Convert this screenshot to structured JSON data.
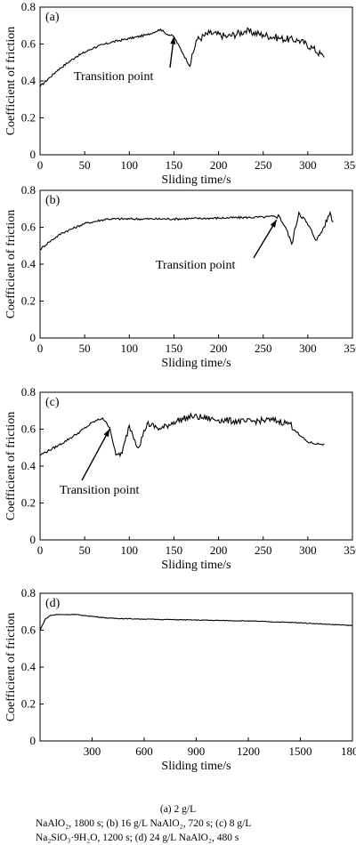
{
  "chart_data": [
    {
      "type": "line",
      "panel_label": "(a)",
      "xlabel": "Sliding time/s",
      "ylabel": "Coefficient of friction",
      "xlim": [
        0,
        350
      ],
      "ylim": [
        0,
        0.8
      ],
      "xticks": [
        "0",
        "50",
        "100",
        "150",
        "200",
        "250",
        "300",
        "350"
      ],
      "yticks": [
        "0",
        "0.2",
        "0.4",
        "0.6",
        "0.8"
      ],
      "annotation": {
        "text": "Transition point",
        "x": 150,
        "y": 0.66
      },
      "x": [
        0,
        20,
        40,
        60,
        80,
        100,
        120,
        135,
        140,
        150,
        160,
        168,
        175,
        190,
        210,
        230,
        250,
        270,
        290,
        305,
        318
      ],
      "y": [
        0.37,
        0.46,
        0.53,
        0.58,
        0.61,
        0.63,
        0.65,
        0.68,
        0.66,
        0.64,
        0.55,
        0.48,
        0.62,
        0.66,
        0.64,
        0.67,
        0.65,
        0.63,
        0.62,
        0.58,
        0.53
      ]
    },
    {
      "type": "line",
      "panel_label": "(b)",
      "xlabel": "Sliding time/s",
      "ylabel": "Coefficient of friction",
      "xlim": [
        0,
        350
      ],
      "ylim": [
        0,
        0.8
      ],
      "xticks": [
        "0",
        "50",
        "100",
        "150",
        "200",
        "250",
        "300",
        "350"
      ],
      "yticks": [
        "0",
        "0.2",
        "0.4",
        "0.6",
        "0.8"
      ],
      "annotation": {
        "text": "Transition point",
        "x": 265,
        "y": 0.66
      },
      "x": [
        0,
        10,
        25,
        50,
        75,
        100,
        150,
        200,
        250,
        268,
        275,
        282,
        290,
        298,
        310,
        318,
        325,
        328
      ],
      "y": [
        0.48,
        0.52,
        0.57,
        0.62,
        0.645,
        0.645,
        0.645,
        0.65,
        0.655,
        0.66,
        0.6,
        0.51,
        0.68,
        0.63,
        0.53,
        0.6,
        0.68,
        0.63
      ]
    },
    {
      "type": "line",
      "panel_label": "(c)",
      "xlabel": "Sliding time/s",
      "ylabel": "Coefficient of friction",
      "xlim": [
        0,
        350
      ],
      "ylim": [
        0,
        0.8
      ],
      "xticks": [
        "0",
        "50",
        "100",
        "150",
        "200",
        "250",
        "300",
        "350"
      ],
      "yticks": [
        "0",
        "0.2",
        "0.4",
        "0.6",
        "0.8"
      ],
      "annotation": {
        "text": "Transition point",
        "x": 78,
        "y": 0.62
      },
      "x": [
        0,
        20,
        40,
        60,
        70,
        78,
        85,
        92,
        100,
        110,
        120,
        135,
        150,
        170,
        200,
        230,
        260,
        280,
        290,
        300,
        310,
        318
      ],
      "y": [
        0.46,
        0.51,
        0.57,
        0.64,
        0.66,
        0.61,
        0.46,
        0.47,
        0.62,
        0.5,
        0.63,
        0.6,
        0.64,
        0.67,
        0.65,
        0.64,
        0.65,
        0.63,
        0.57,
        0.53,
        0.52,
        0.52
      ]
    },
    {
      "type": "line",
      "panel_label": "(d)",
      "xlabel": "Sliding time/s",
      "ylabel": "Coefficient of friction",
      "xlim": [
        0,
        1800
      ],
      "ylim": [
        0,
        0.8
      ],
      "xticks": [
        "300",
        "600",
        "900",
        "1200",
        "1500",
        "1800"
      ],
      "yticks": [
        "0",
        "0.2",
        "0.4",
        "0.6",
        "0.8"
      ],
      "x": [
        0,
        30,
        60,
        100,
        200,
        300,
        400,
        600,
        900,
        1200,
        1500,
        1700,
        1800
      ],
      "y": [
        0.6,
        0.66,
        0.68,
        0.685,
        0.685,
        0.675,
        0.665,
        0.66,
        0.655,
        0.65,
        0.64,
        0.63,
        0.625
      ]
    }
  ],
  "caption": {
    "line1": "(a)   2   g/L",
    "line2": "NaAlO₂,   1800   s;   (b)   16   g/L   NaAlO₂,   720   s;   (c)   8   g/L",
    "line3": "Na₂SiO₃·9H₂O, 1200 s; (d) 24 g/L NaAlO₂, 480 s"
  }
}
